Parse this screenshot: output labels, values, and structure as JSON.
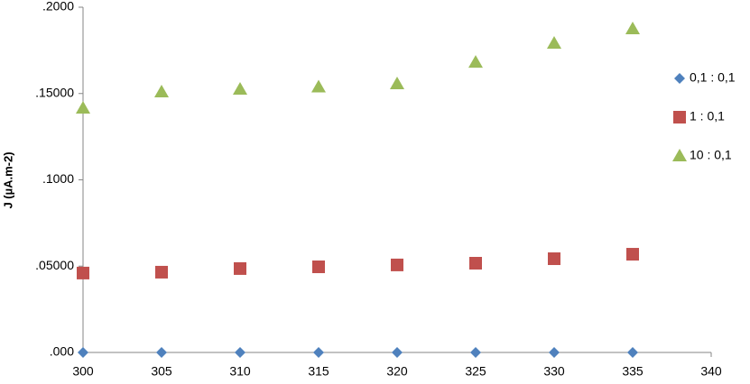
{
  "chart_data": {
    "type": "scatter",
    "y_label": "J (µA.m-2)",
    "x": [
      300,
      305,
      310,
      315,
      320,
      325,
      330,
      335
    ],
    "series": [
      {
        "name": "0,1 : 0,1",
        "color": "#4f81bd",
        "marker": "diamond",
        "values": [
          0,
          0,
          0,
          0,
          0,
          0,
          0,
          0
        ]
      },
      {
        "name": "1 : 0,1",
        "color": "#c0504d",
        "marker": "square",
        "values": [
          0.046,
          0.0465,
          0.0486,
          0.0496,
          0.0507,
          0.0517,
          0.0543,
          0.0569
        ]
      },
      {
        "name": "10 : 0,1",
        "color": "#9bbb59",
        "marker": "triangle",
        "values": [
          0.1415,
          0.1509,
          0.1525,
          0.1538,
          0.1556,
          0.1681,
          0.1791,
          0.1875
        ]
      }
    ],
    "xlim": [
      300,
      340
    ],
    "xticks": [
      300,
      305,
      310,
      315,
      320,
      325,
      330,
      335,
      340
    ],
    "ylim": [
      0,
      0.2
    ],
    "yticks": [
      {
        "value": 0,
        "label": ".000"
      },
      {
        "value": 0.05,
        "label": ".05000"
      },
      {
        "value": 0.1,
        "label": ".1000"
      },
      {
        "value": 0.15,
        "label": ".15000"
      },
      {
        "value": 0.2,
        "label": ".2000"
      }
    ],
    "legend": "right"
  }
}
